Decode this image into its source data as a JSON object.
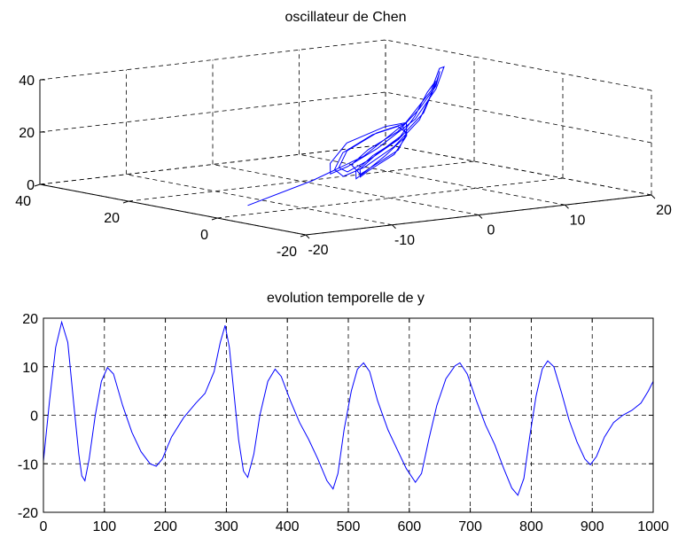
{
  "chart_data": [
    {
      "type": "line3d",
      "title": "oscillateur de Chen",
      "x_ticks": [
        "-20",
        "-10",
        "0",
        "10",
        "20"
      ],
      "y_ticks": [
        "-20",
        "0",
        "20",
        "40"
      ],
      "z_ticks": [
        "0",
        "20",
        "40"
      ],
      "xlim": [
        -20,
        20
      ],
      "ylim": [
        -20,
        40
      ],
      "zlim": [
        0,
        40
      ],
      "grid": true,
      "series": [
        {
          "color": "#0000ff",
          "points": [
            [
              -18,
              -3,
              5
            ],
            [
              -8,
              2,
              9
            ],
            [
              0,
              6,
              14
            ],
            [
              8,
              12,
              22
            ],
            [
              14,
              18,
              30
            ],
            [
              17,
              22,
              36
            ],
            [
              16,
              19,
              38
            ],
            [
              12,
              13,
              33
            ],
            [
              6,
              6,
              26
            ],
            [
              -2,
              -1,
              20
            ],
            [
              -8,
              -6,
              17
            ],
            [
              -11,
              -8,
              16
            ],
            [
              -10,
              -6,
              19
            ],
            [
              -5,
              0,
              23
            ],
            [
              2,
              5,
              25
            ],
            [
              6,
              8,
              24
            ],
            [
              5,
              6,
              20
            ],
            [
              0,
              1,
              16
            ],
            [
              -5,
              -4,
              13
            ],
            [
              -7,
              -6,
              12
            ],
            [
              -6,
              -4,
              14
            ],
            [
              -2,
              0,
              17
            ],
            [
              3,
              4,
              20
            ],
            [
              8,
              10,
              25
            ],
            [
              12,
              15,
              31
            ],
            [
              14,
              17,
              34
            ],
            [
              12,
              14,
              31
            ],
            [
              7,
              7,
              25
            ],
            [
              1,
              1,
              19
            ],
            [
              -5,
              -4,
              15
            ],
            [
              -9,
              -7,
              14
            ],
            [
              -10,
              -7,
              17
            ],
            [
              -7,
              -3,
              21
            ],
            [
              -1,
              2,
              24
            ],
            [
              4,
              6,
              24
            ],
            [
              5,
              6,
              21
            ],
            [
              2,
              2,
              17
            ],
            [
              -3,
              -2,
              14
            ],
            [
              -6,
              -5,
              13
            ],
            [
              -6,
              -3,
              16
            ],
            [
              -2,
              1,
              19
            ],
            [
              4,
              6,
              22
            ],
            [
              9,
              11,
              27
            ],
            [
              13,
              15,
              33
            ],
            [
              15,
              18,
              37
            ],
            [
              13,
              15,
              34
            ],
            [
              8,
              8,
              27
            ],
            [
              2,
              2,
              21
            ],
            [
              -4,
              -3,
              17
            ],
            [
              -8,
              -6,
              15
            ],
            [
              -9,
              -6,
              17
            ],
            [
              -6,
              -2,
              21
            ],
            [
              0,
              3,
              24
            ],
            [
              5,
              7,
              24
            ],
            [
              5,
              6,
              20
            ],
            [
              1,
              1,
              16
            ],
            [
              -4,
              -3,
              13
            ],
            [
              -6,
              -5,
              12
            ],
            [
              -5,
              -3,
              14
            ],
            [
              -1,
              1,
              17
            ],
            [
              4,
              5,
              21
            ]
          ]
        }
      ]
    },
    {
      "type": "line",
      "title": "evolution temporelle de y",
      "xlim": [
        0,
        1000
      ],
      "ylim": [
        -20,
        20
      ],
      "x_ticks": [
        "0",
        "100",
        "200",
        "300",
        "400",
        "500",
        "600",
        "700",
        "800",
        "900",
        "1000"
      ],
      "y_ticks": [
        "-20",
        "-10",
        "0",
        "10",
        "20"
      ],
      "grid": true,
      "series": [
        {
          "color": "#0000ff",
          "points": [
            [
              0,
              -9.5
            ],
            [
              10,
              3
            ],
            [
              20,
              14
            ],
            [
              30,
              19.2
            ],
            [
              40,
              15
            ],
            [
              50,
              2
            ],
            [
              58,
              -8
            ],
            [
              63,
              -12.5
            ],
            [
              68,
              -13.5
            ],
            [
              75,
              -9
            ],
            [
              85,
              0
            ],
            [
              95,
              7
            ],
            [
              105,
              9.8
            ],
            [
              115,
              8.5
            ],
            [
              130,
              2
            ],
            [
              145,
              -3.5
            ],
            [
              160,
              -7.5
            ],
            [
              175,
              -10
            ],
            [
              185,
              -10.5
            ],
            [
              195,
              -9
            ],
            [
              210,
              -4.5
            ],
            [
              230,
              -0.5
            ],
            [
              250,
              2.5
            ],
            [
              265,
              4.5
            ],
            [
              280,
              9
            ],
            [
              290,
              15
            ],
            [
              298,
              18.5
            ],
            [
              305,
              14
            ],
            [
              312,
              5
            ],
            [
              320,
              -5
            ],
            [
              328,
              -11.5
            ],
            [
              335,
              -12.8
            ],
            [
              345,
              -8
            ],
            [
              355,
              0
            ],
            [
              368,
              7
            ],
            [
              380,
              9.5
            ],
            [
              390,
              8
            ],
            [
              405,
              3
            ],
            [
              420,
              -1.5
            ],
            [
              435,
              -5
            ],
            [
              450,
              -9
            ],
            [
              465,
              -13.5
            ],
            [
              475,
              -15.2
            ],
            [
              483,
              -12
            ],
            [
              493,
              -3
            ],
            [
              505,
              5
            ],
            [
              515,
              9.5
            ],
            [
              525,
              10.8
            ],
            [
              535,
              9
            ],
            [
              548,
              3
            ],
            [
              565,
              -3
            ],
            [
              580,
              -7
            ],
            [
              595,
              -11
            ],
            [
              610,
              -13.8
            ],
            [
              620,
              -12
            ],
            [
              632,
              -5
            ],
            [
              645,
              2
            ],
            [
              660,
              7.5
            ],
            [
              675,
              10.2
            ],
            [
              683,
              10.8
            ],
            [
              695,
              8.5
            ],
            [
              710,
              3
            ],
            [
              725,
              -2
            ],
            [
              740,
              -6
            ],
            [
              755,
              -11
            ],
            [
              768,
              -15
            ],
            [
              778,
              -16.5
            ],
            [
              788,
              -13
            ],
            [
              798,
              -4
            ],
            [
              808,
              4
            ],
            [
              818,
              9.5
            ],
            [
              827,
              11.2
            ],
            [
              837,
              10
            ],
            [
              850,
              4.5
            ],
            [
              862,
              -1
            ],
            [
              875,
              -5.5
            ],
            [
              888,
              -9
            ],
            [
              897,
              -10.2
            ],
            [
              907,
              -8.5
            ],
            [
              920,
              -4.5
            ],
            [
              935,
              -1.5
            ],
            [
              950,
              0
            ],
            [
              965,
              1
            ],
            [
              980,
              2.5
            ],
            [
              992,
              5
            ],
            [
              1000,
              7
            ]
          ]
        }
      ]
    }
  ]
}
